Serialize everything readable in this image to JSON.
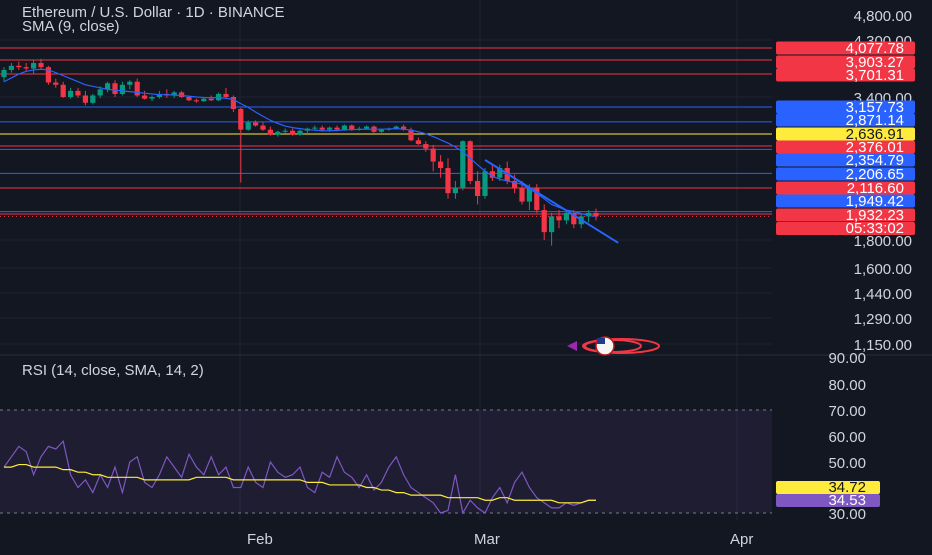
{
  "chart_data": [
    {
      "type": "candlestick",
      "title": "Ethereum / U.S. Dollar · 1D · BINANCE",
      "indicator_label": "SMA (9, close)",
      "y_axis_ticks": [
        "4,800.00",
        "4,300.00",
        "3,400.00",
        "1,800.00",
        "1,600.00",
        "1,440.00",
        "1,290.00",
        "1,150.00"
      ],
      "x_axis_ticks": [
        "Feb",
        "Mar",
        "Apr"
      ],
      "grid": true,
      "horizontal_levels": [
        {
          "value": 4077.78,
          "label": "4,077.78",
          "color": "#f23645"
        },
        {
          "value": 3903.27,
          "label": "3,903.27",
          "color": "#f23645"
        },
        {
          "value": 3701.31,
          "label": "3,701.31",
          "color": "#f23645"
        },
        {
          "value": 3157.73,
          "label": "3,157.73",
          "color": "#2962ff"
        },
        {
          "value": 2871.14,
          "label": "2,871.14",
          "color": "#2962ff"
        },
        {
          "value": 2636.91,
          "label": "2,636.91",
          "color": "#ffeb3b"
        },
        {
          "value": 2376.01,
          "label": "2,376.01",
          "color": "#f23645"
        },
        {
          "value": 2354.79,
          "label": "2,354.79",
          "color": "#2962ff"
        },
        {
          "value": 2206.65,
          "label": "2,206.65",
          "color": "#2962ff"
        },
        {
          "value": 2116.6,
          "label": "2,116.60",
          "color": "#f23645"
        },
        {
          "value": 1949.42,
          "label": "1,949.42",
          "color": "#2962ff"
        },
        {
          "value": 1932.23,
          "label": "1,932.23",
          "color": "#f23645"
        }
      ],
      "countdown_label": "05:33:02",
      "trendline": {
        "color": "#2962ff",
        "from": [
          65,
          2290
        ],
        "to": [
          83,
          1780
        ]
      },
      "candles": [
        [
          3660,
          3800,
          3600,
          3760
        ],
        [
          3760,
          3860,
          3720,
          3820
        ],
        [
          3820,
          3880,
          3760,
          3800
        ],
        [
          3800,
          3860,
          3740,
          3780
        ],
        [
          3780,
          3900,
          3700,
          3860
        ],
        [
          3860,
          3920,
          3780,
          3800
        ],
        [
          3800,
          3820,
          3560,
          3590
        ],
        [
          3590,
          3640,
          3520,
          3560
        ],
        [
          3560,
          3600,
          3380,
          3400
        ],
        [
          3400,
          3520,
          3360,
          3480
        ],
        [
          3480,
          3520,
          3380,
          3420
        ],
        [
          3420,
          3480,
          3200,
          3260
        ],
        [
          3260,
          3440,
          3220,
          3420
        ],
        [
          3420,
          3540,
          3380,
          3500
        ],
        [
          3500,
          3600,
          3460,
          3580
        ],
        [
          3580,
          3620,
          3400,
          3440
        ],
        [
          3440,
          3600,
          3420,
          3560
        ],
        [
          3560,
          3620,
          3500,
          3600
        ],
        [
          3600,
          3640,
          3400,
          3420
        ],
        [
          3420,
          3480,
          3340,
          3360
        ],
        [
          3360,
          3420,
          3300,
          3400
        ],
        [
          3400,
          3480,
          3360,
          3440
        ],
        [
          3440,
          3500,
          3380,
          3420
        ],
        [
          3420,
          3480,
          3380,
          3460
        ],
        [
          3460,
          3480,
          3380,
          3400
        ],
        [
          3400,
          3420,
          3300,
          3320
        ],
        [
          3320,
          3360,
          3260,
          3300
        ],
        [
          3300,
          3380,
          3280,
          3360
        ],
        [
          3360,
          3420,
          3300,
          3320
        ],
        [
          3320,
          3460,
          3300,
          3440
        ],
        [
          3440,
          3520,
          3360,
          3400
        ],
        [
          3400,
          3420,
          3060,
          3120
        ],
        [
          3120,
          3140,
          2150,
          2720
        ],
        [
          2720,
          2900,
          2700,
          2860
        ],
        [
          2860,
          2900,
          2780,
          2800
        ],
        [
          2800,
          2860,
          2700,
          2720
        ],
        [
          2720,
          2780,
          2600,
          2620
        ],
        [
          2620,
          2700,
          2580,
          2680
        ],
        [
          2680,
          2740,
          2640,
          2700
        ],
        [
          2700,
          2740,
          2600,
          2620
        ],
        [
          2620,
          2720,
          2600,
          2700
        ],
        [
          2700,
          2760,
          2660,
          2740
        ],
        [
          2740,
          2800,
          2700,
          2760
        ],
        [
          2760,
          2800,
          2680,
          2720
        ],
        [
          2720,
          2780,
          2680,
          2760
        ],
        [
          2760,
          2800,
          2700,
          2720
        ],
        [
          2720,
          2820,
          2700,
          2800
        ],
        [
          2800,
          2820,
          2700,
          2720
        ],
        [
          2720,
          2780,
          2700,
          2740
        ],
        [
          2740,
          2800,
          2720,
          2780
        ],
        [
          2780,
          2800,
          2660,
          2680
        ],
        [
          2680,
          2740,
          2660,
          2720
        ],
        [
          2720,
          2760,
          2700,
          2740
        ],
        [
          2740,
          2800,
          2720,
          2780
        ],
        [
          2780,
          2820,
          2700,
          2720
        ],
        [
          2720,
          2760,
          2480,
          2500
        ],
        [
          2500,
          2560,
          2400,
          2420
        ],
        [
          2420,
          2480,
          2340,
          2360
        ],
        [
          2360,
          2400,
          2220,
          2280
        ],
        [
          2280,
          2320,
          2180,
          2240
        ],
        [
          2240,
          2300,
          2040,
          2080
        ],
        [
          2080,
          2160,
          2040,
          2120
        ],
        [
          2120,
          2500,
          2100,
          2480
        ],
        [
          2480,
          2500,
          2140,
          2160
        ],
        [
          2160,
          2220,
          2000,
          2060
        ],
        [
          2060,
          2240,
          2040,
          2220
        ],
        [
          2220,
          2260,
          2160,
          2180
        ],
        [
          2180,
          2260,
          2160,
          2240
        ],
        [
          2240,
          2280,
          2140,
          2160
        ],
        [
          2160,
          2200,
          2080,
          2120
        ],
        [
          2120,
          2160,
          2000,
          2020
        ],
        [
          2020,
          2140,
          1960,
          2120
        ],
        [
          2120,
          2140,
          1940,
          1960
        ],
        [
          1960,
          2000,
          1800,
          1840
        ],
        [
          1840,
          1940,
          1760,
          1920
        ],
        [
          1920,
          1960,
          1860,
          1900
        ],
        [
          1900,
          1960,
          1880,
          1940
        ],
        [
          1940,
          1960,
          1860,
          1880
        ],
        [
          1880,
          1940,
          1860,
          1920
        ],
        [
          1920,
          1960,
          1890,
          1940
        ],
        [
          1940,
          1970,
          1900,
          1920
        ]
      ],
      "sma_values": [
        3600,
        3650,
        3700,
        3740,
        3760,
        3770,
        3760,
        3720,
        3680,
        3640,
        3600,
        3560,
        3540,
        3520,
        3500,
        3490,
        3480,
        3470,
        3460,
        3450,
        3440,
        3430,
        3430,
        3425,
        3420,
        3410,
        3400,
        3390,
        3385,
        3380,
        3370,
        3340,
        3240,
        3150,
        3060,
        2980,
        2900,
        2840,
        2790,
        2760,
        2740,
        2720,
        2710,
        2700,
        2700,
        2705,
        2715,
        2720,
        2725,
        2730,
        2730,
        2730,
        2735,
        2740,
        2730,
        2710,
        2680,
        2640,
        2580,
        2510,
        2440,
        2370,
        2340,
        2300,
        2260,
        2220,
        2190,
        2170,
        2160,
        2150,
        2140,
        2110,
        2080,
        2040,
        2000,
        1980,
        1960,
        1950,
        1935,
        1925,
        1920
      ]
    },
    {
      "type": "line",
      "title": "RSI (14, close, SMA, 14, 2)",
      "y_axis_ticks": [
        "90.00",
        "80.00",
        "70.00",
        "60.00",
        "50.00",
        "30.00"
      ],
      "band": [
        30,
        70
      ],
      "series": [
        {
          "name": "RSI",
          "color": "#7e57c2",
          "last_label": "34.53",
          "values": [
            48,
            52,
            56,
            54,
            45,
            52,
            56,
            55,
            58,
            45,
            40,
            43,
            38,
            45,
            40,
            48,
            38,
            50,
            52,
            42,
            40,
            45,
            52,
            48,
            44,
            53,
            48,
            45,
            52,
            45,
            48,
            40,
            40,
            48,
            42,
            40,
            50,
            46,
            44,
            45,
            48,
            40,
            38,
            46,
            44,
            52,
            46,
            44,
            40,
            45,
            39,
            42,
            48,
            52,
            45,
            40,
            38,
            36,
            34,
            30,
            31,
            45,
            30,
            35,
            32,
            30,
            36,
            40,
            34,
            42,
            46,
            40,
            36,
            34,
            32,
            32,
            34,
            33,
            34,
            35,
            35
          ]
        },
        {
          "name": "RSI-based MA",
          "color": "#ffeb3b",
          "last_label": "34.72",
          "values": [
            48,
            48,
            49,
            49,
            48,
            48,
            48,
            48,
            47,
            47,
            46,
            46,
            45,
            45,
            44,
            44,
            44,
            44,
            44,
            43,
            43,
            43,
            43,
            43,
            43,
            43,
            44,
            44,
            44,
            44,
            44,
            43,
            43,
            43,
            43,
            43,
            43,
            43,
            43,
            43,
            43,
            42,
            42,
            42,
            41,
            41,
            41,
            41,
            41,
            40,
            40,
            39,
            39,
            38,
            38,
            37,
            37,
            37,
            37,
            37,
            36,
            36,
            36,
            36,
            36,
            35,
            35,
            36,
            36,
            35,
            35,
            35,
            35,
            35,
            35,
            34,
            34,
            34,
            34,
            35,
            35
          ]
        }
      ]
    }
  ]
}
